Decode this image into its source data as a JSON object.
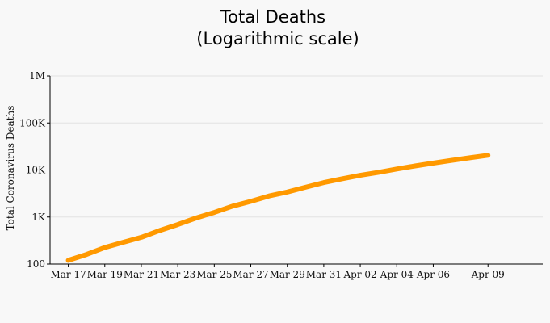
{
  "chart_data": {
    "type": "line",
    "title": "Total Deaths",
    "subtitle": "(Logarithmic scale)",
    "ylabel": "Total Coronavirus Deaths",
    "xlabel": "",
    "y_scale": "log",
    "ylim": [
      100,
      1000000
    ],
    "y_ticks": [
      {
        "value": 100,
        "label": "100"
      },
      {
        "value": 1000,
        "label": "1K"
      },
      {
        "value": 10000,
        "label": "10K"
      },
      {
        "value": 100000,
        "label": "100K"
      },
      {
        "value": 1000000,
        "label": "1M"
      }
    ],
    "x_tick_labels": [
      "Mar 17",
      "Mar 19",
      "Mar 21",
      "Mar 23",
      "Mar 25",
      "Mar 27",
      "Mar 29",
      "Mar 31",
      "Apr 02",
      "Apr 04",
      "Apr 06",
      "Apr 09"
    ],
    "x_tick_dates": [
      "2020-03-17",
      "2020-03-19",
      "2020-03-21",
      "2020-03-23",
      "2020-03-25",
      "2020-03-27",
      "2020-03-29",
      "2020-03-31",
      "2020-04-02",
      "2020-04-04",
      "2020-04-06",
      "2020-04-09"
    ],
    "xlim": [
      "2020-03-16",
      "2020-04-12"
    ],
    "grid": true,
    "series": [
      {
        "color": "#ff9900",
        "points": [
          {
            "x": "2020-03-17",
            "y": 120
          },
          {
            "x": "2020-03-18",
            "y": 160
          },
          {
            "x": "2020-03-19",
            "y": 225
          },
          {
            "x": "2020-03-20",
            "y": 290
          },
          {
            "x": "2020-03-21",
            "y": 370
          },
          {
            "x": "2020-03-22",
            "y": 515
          },
          {
            "x": "2020-03-23",
            "y": 690
          },
          {
            "x": "2020-03-24",
            "y": 950
          },
          {
            "x": "2020-03-25",
            "y": 1250
          },
          {
            "x": "2020-03-26",
            "y": 1700
          },
          {
            "x": "2020-03-27",
            "y": 2150
          },
          {
            "x": "2020-03-28",
            "y": 2800
          },
          {
            "x": "2020-03-29",
            "y": 3400
          },
          {
            "x": "2020-03-30",
            "y": 4300
          },
          {
            "x": "2020-03-31",
            "y": 5400
          },
          {
            "x": "2020-04-01",
            "y": 6500
          },
          {
            "x": "2020-04-02",
            "y": 7700
          },
          {
            "x": "2020-04-03",
            "y": 8900
          },
          {
            "x": "2020-04-04",
            "y": 10500
          },
          {
            "x": "2020-04-05",
            "y": 12200
          },
          {
            "x": "2020-04-06",
            "y": 14000
          },
          {
            "x": "2020-04-07",
            "y": 16000
          },
          {
            "x": "2020-04-08",
            "y": 18200
          },
          {
            "x": "2020-04-09",
            "y": 20500
          }
        ]
      }
    ]
  }
}
